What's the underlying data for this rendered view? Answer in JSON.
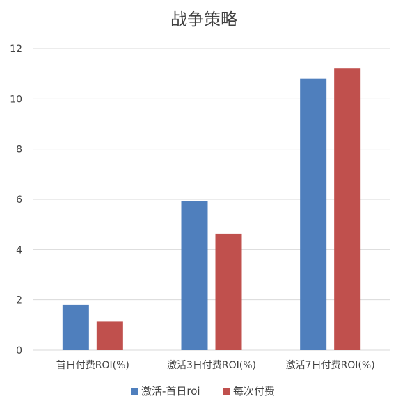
{
  "chart_data": {
    "type": "bar",
    "title": "战争策略",
    "categories": [
      "首日付费ROI(%)",
      "激活3日付费ROI(%)",
      "激活7日付费ROI(%)"
    ],
    "series": [
      {
        "name": "激活-首日roi",
        "values": [
          1.8,
          5.92,
          10.82
        ],
        "color": "#4f7fbd"
      },
      {
        "name": "每次付费",
        "values": [
          1.15,
          4.62,
          11.22
        ],
        "color": "#c0504d"
      }
    ],
    "yticks": [
      "0",
      "2",
      "4",
      "6",
      "8",
      "10",
      "12"
    ],
    "ylim": [
      0,
      12
    ],
    "grid": true,
    "legend_position": "bottom"
  }
}
